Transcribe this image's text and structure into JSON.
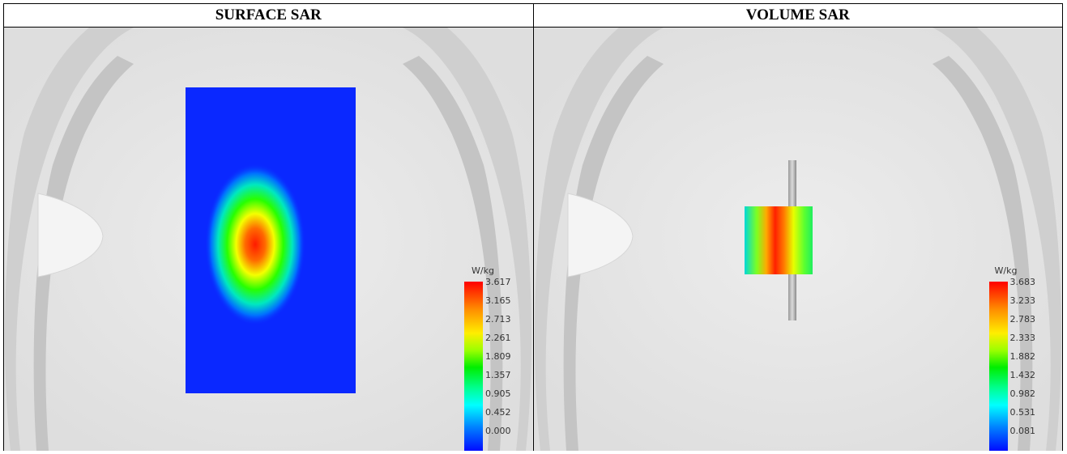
{
  "panels": [
    {
      "title": "SURFACE SAR",
      "colorbar": {
        "unit": "W/kg",
        "ticks": [
          "3.617",
          "3.165",
          "2.713",
          "2.261",
          "1.809",
          "1.357",
          "0.905",
          "0.452",
          "0.000"
        ]
      }
    },
    {
      "title": "VOLUME SAR",
      "colorbar": {
        "unit": "W/kg",
        "ticks": [
          "3.683",
          "3.233",
          "2.783",
          "2.333",
          "1.882",
          "1.432",
          "0.982",
          "0.531",
          "0.081"
        ]
      }
    }
  ]
}
